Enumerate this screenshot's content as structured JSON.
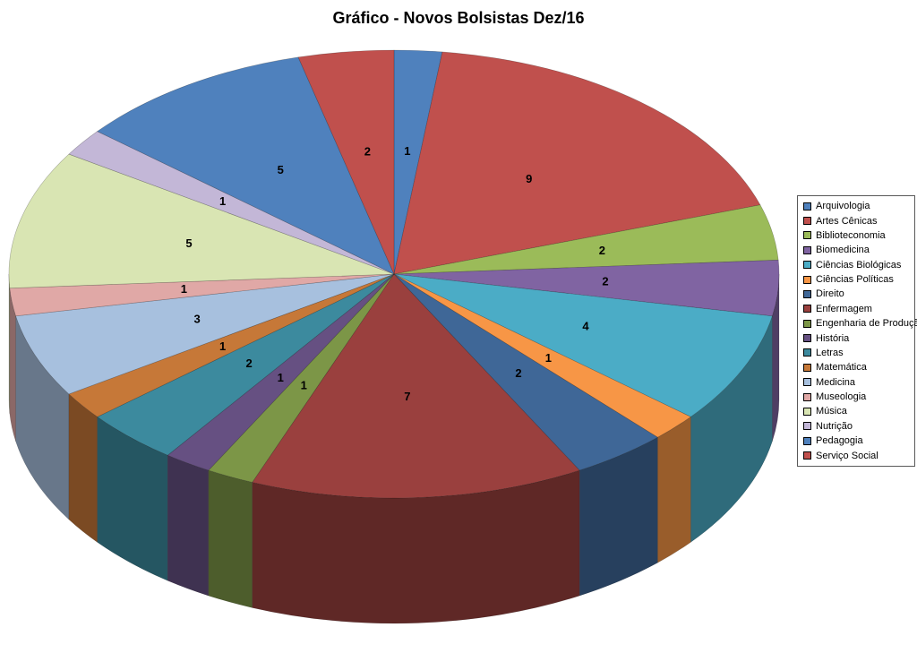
{
  "title": "Gráfico - Novos Bolsistas Dez/16",
  "chart_data": {
    "type": "pie",
    "style": "3d",
    "title": "Gráfico - Novos Bolsistas Dez/16",
    "legend_position": "right",
    "total": 50,
    "background": "#FFFFFF",
    "label_color": "#000000",
    "categories": [
      "Arquivologia",
      "Artes Cênicas",
      "Biblioteconomia",
      "Biomedicina",
      "Ciências Biológicas",
      "Ciências Políticas",
      "Direito",
      "Enfermagem",
      "Engenharia de Produção",
      "História",
      "Letras",
      "Matemática",
      "Medicina",
      "Museologia",
      "Música",
      "Nutrição",
      "Pedagogia",
      "Serviço Social"
    ],
    "values": [
      1,
      9,
      2,
      2,
      4,
      1,
      2,
      7,
      1,
      1,
      2,
      1,
      3,
      1,
      5,
      1,
      5,
      2
    ],
    "colors": [
      "#4F81BD",
      "#C0504D",
      "#9BBB59",
      "#8064A2",
      "#4BACC6",
      "#F79646",
      "#3F6797",
      "#9A403E",
      "#7C9647",
      "#665082",
      "#3C8A9E",
      "#C67838",
      "#A7C0DE",
      "#E0A8A6",
      "#D9E5B3",
      "#C3B7D7",
      "#4F81BD",
      "#C0504D"
    ]
  }
}
